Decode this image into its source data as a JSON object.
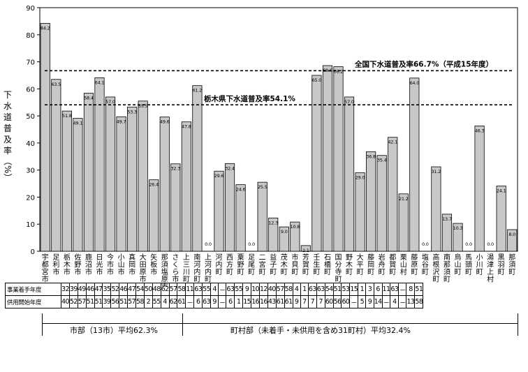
{
  "chart_data": {
    "type": "bar",
    "ylabel": [
      "下",
      "水",
      "道",
      "普",
      "及",
      "率",
      "（%）"
    ],
    "ylim": [
      0,
      90
    ],
    "yticks": [
      0,
      10,
      20,
      30,
      40,
      50,
      60,
      70,
      80,
      90
    ],
    "categories": [
      {
        "name": "宇都宮市",
        "lines": [
          "宇",
          "都",
          "宮",
          "市"
        ]
      },
      {
        "name": "足利市",
        "lines": [
          "足",
          "利",
          "市"
        ]
      },
      {
        "name": "栃木市",
        "lines": [
          "栃",
          "木",
          "市"
        ]
      },
      {
        "name": "佐野市",
        "lines": [
          "佐",
          "野",
          "市"
        ]
      },
      {
        "name": "鹿沼市",
        "lines": [
          "鹿",
          "沼",
          "市"
        ]
      },
      {
        "name": "日光市",
        "lines": [
          "日",
          "光",
          "市"
        ]
      },
      {
        "name": "今市市",
        "lines": [
          "今",
          "市",
          "市"
        ]
      },
      {
        "name": "小山市",
        "lines": [
          "小",
          "山",
          "市"
        ]
      },
      {
        "name": "真岡市",
        "lines": [
          "真",
          "岡",
          "市"
        ]
      },
      {
        "name": "大田原市",
        "lines": [
          "大",
          "田",
          "原",
          "市"
        ]
      },
      {
        "name": "矢板市",
        "lines": [
          "矢",
          "板",
          "市"
        ]
      },
      {
        "name": "那須塩原市",
        "lines": [
          "那",
          "須",
          "塩",
          "原",
          "市"
        ]
      },
      {
        "name": "さくら市",
        "lines": [
          "さ",
          "く",
          "ら",
          "市"
        ]
      },
      {
        "name": "上三川町",
        "lines": [
          "上",
          "三",
          "川",
          "町"
        ]
      },
      {
        "name": "南河内町",
        "lines": [
          "南",
          "河",
          "内",
          "町"
        ]
      },
      {
        "name": "上河内町",
        "lines": [
          "上",
          "河",
          "内",
          "町"
        ]
      },
      {
        "name": "河内町",
        "lines": [
          "河",
          "内",
          "町"
        ]
      },
      {
        "name": "西方町",
        "lines": [
          "西",
          "方",
          "町"
        ]
      },
      {
        "name": "粟野町",
        "lines": [
          "粟",
          "野",
          "町"
        ]
      },
      {
        "name": "足尾町",
        "lines": [
          "足",
          "尾",
          "町"
        ]
      },
      {
        "name": "二宮町",
        "lines": [
          "二",
          "宮",
          "町"
        ]
      },
      {
        "name": "益子町",
        "lines": [
          "益",
          "子",
          "町"
        ]
      },
      {
        "name": "茂木町",
        "lines": [
          "茂",
          "木",
          "町"
        ]
      },
      {
        "name": "市貝町",
        "lines": [
          "市",
          "貝",
          "町"
        ]
      },
      {
        "name": "芳賀町",
        "lines": [
          "芳",
          "賀",
          "町"
        ]
      },
      {
        "name": "壬生町",
        "lines": [
          "壬",
          "生",
          "町"
        ]
      },
      {
        "name": "石橋町",
        "lines": [
          "石",
          "橋",
          "町"
        ]
      },
      {
        "name": "国分寺町",
        "lines": [
          "国",
          "分",
          "寺",
          "町"
        ]
      },
      {
        "name": "野木町",
        "lines": [
          "野",
          "木",
          "町"
        ]
      },
      {
        "name": "大平町",
        "lines": [
          "大",
          "平",
          "町"
        ]
      },
      {
        "name": "藤岡町",
        "lines": [
          "藤",
          "岡",
          "町"
        ]
      },
      {
        "name": "岩舟町",
        "lines": [
          "岩",
          "舟",
          "町"
        ]
      },
      {
        "name": "都賀町",
        "lines": [
          "都",
          "賀",
          "町"
        ]
      },
      {
        "name": "栗山村",
        "lines": [
          "栗",
          "山",
          "村"
        ]
      },
      {
        "name": "藤原町",
        "lines": [
          "藤",
          "原",
          "町"
        ]
      },
      {
        "name": "塩谷町",
        "lines": [
          "塩",
          "谷",
          "町"
        ]
      },
      {
        "name": "高根沢町",
        "lines": [
          "高",
          "根",
          "沢",
          "町"
        ]
      },
      {
        "name": "南那須町",
        "lines": [
          "南",
          "那",
          "須",
          "町"
        ]
      },
      {
        "name": "烏山町",
        "lines": [
          "烏",
          "山",
          "町"
        ]
      },
      {
        "name": "馬頭町",
        "lines": [
          "馬",
          "頭",
          "町"
        ]
      },
      {
        "name": "小川町",
        "lines": [
          "小",
          "川",
          "町"
        ]
      },
      {
        "name": "湯津上村",
        "lines": [
          "湯",
          "津",
          "上",
          "村"
        ]
      },
      {
        "name": "黒羽町",
        "lines": [
          "黒",
          "羽",
          "町"
        ]
      },
      {
        "name": "那須町",
        "lines": [
          "那",
          "須",
          "町"
        ]
      }
    ],
    "values": [
      84.2,
      63.5,
      51.8,
      49.1,
      58.4,
      64.1,
      57.0,
      49.7,
      53.3,
      55.5,
      26.4,
      49.6,
      32.3,
      47.8,
      61.2,
      0.0,
      29.6,
      32.4,
      24.6,
      0.0,
      25.5,
      12.3,
      9.0,
      10.8,
      2.1,
      65.0,
      68.6,
      68.2,
      57.0,
      29.0,
      36.8,
      35.4,
      42.1,
      21.2,
      64.0,
      0.0,
      31.2,
      13.7,
      10.3,
      0.0,
      46.3,
      0.0,
      24.1,
      8.0
    ],
    "value_labels": [
      "84.2",
      "63.5",
      "51.8",
      "49.1",
      "58.4",
      "64.1",
      "57.0",
      "49.7",
      "53.3",
      "55.5",
      "26.4",
      "49.6",
      "32.3",
      "47.8",
      "61.2",
      "0.0",
      "29.6",
      "32.4",
      "24.6",
      "0.0",
      "25.5",
      "12.3",
      "9.0",
      "10.8",
      "2.1",
      "65.0",
      "68.6",
      "68.2",
      "57.0",
      "29.0",
      "36.8",
      "35.4",
      "42.1",
      "21.2",
      "64.0",
      "0.0",
      "31.2",
      "13.7",
      "10.3",
      "0.0",
      "46.3",
      "0.0",
      "24.1",
      "8.0"
    ],
    "reference_lines": [
      {
        "value": 66.7,
        "label": "全国下水道普及率66.7%（平成15年度）"
      },
      {
        "value": 54.1,
        "label": "栃木県下水道普及率54.1%"
      }
    ],
    "bar_color": "#c8c8c8",
    "grid": false
  },
  "table": {
    "rows": [
      {
        "label": "事業着手年度",
        "cells": [
          "32",
          "39",
          "49",
          "46",
          "47",
          "35",
          "52",
          "46",
          "47",
          "54",
          "50",
          "48",
          "62",
          "57",
          "58",
          "11",
          "63",
          "55",
          "4",
          "－",
          "63",
          "55",
          "9",
          "10",
          "12",
          "40",
          "57",
          "58",
          "4",
          "1",
          "63",
          "63",
          "54",
          "51",
          "53",
          "15",
          "1",
          "3",
          "6",
          "11",
          "63",
          "－",
          "8",
          "51"
        ]
      },
      {
        "label": "供用開始年度",
        "cells": [
          "40",
          "52",
          "57",
          "51",
          "51",
          "39",
          "56",
          "51",
          "57",
          "58",
          "2",
          "55",
          "4",
          "62",
          "61",
          "－",
          "6",
          "63",
          "9",
          "－",
          "6",
          "1",
          "15",
          "16",
          "16",
          "43",
          "61",
          "61",
          "9",
          "7",
          "7",
          "7",
          "60",
          "56",
          "60",
          "－",
          "5",
          "9",
          "14",
          "－",
          "4",
          "－",
          "13",
          "58"
        ]
      }
    ]
  },
  "groups": [
    {
      "label": "市部（13市）平均62.3%"
    },
    {
      "label": "町村部（未着手・未供用を含め31町村）平均32.4%"
    }
  ]
}
